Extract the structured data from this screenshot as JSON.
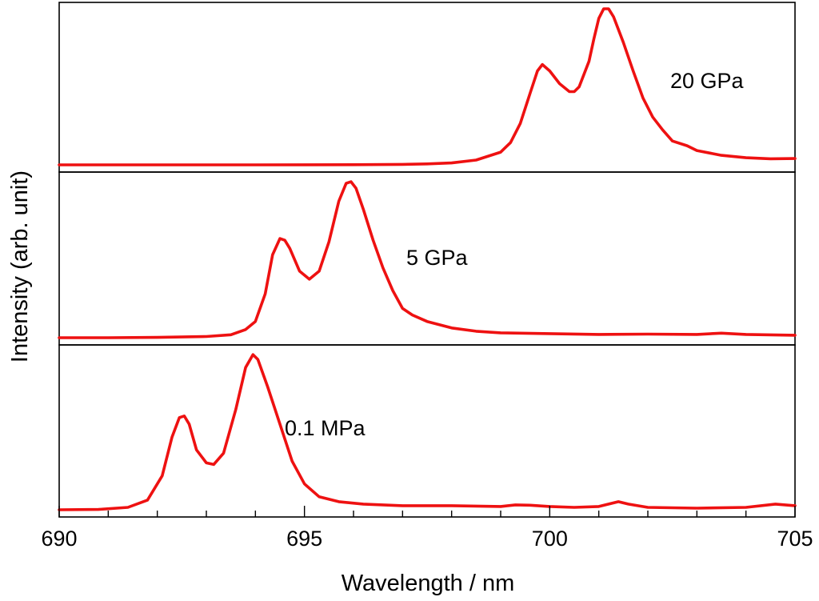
{
  "chart_data": {
    "type": "line",
    "xlabel": "Wavelength / nm",
    "ylabel": "Intensity (arb. unit)",
    "xlim": [
      690,
      705
    ],
    "x_ticks": [
      "690",
      "695",
      "700",
      "705"
    ],
    "x_tick_values": [
      690,
      695,
      700,
      705
    ],
    "x_minor_step": 1,
    "line_color": "#ee1111",
    "panels": [
      {
        "label": "20 GPa",
        "ylim": [
          0,
          1
        ],
        "points": [
          [
            690,
            0.01
          ],
          [
            692,
            0.01
          ],
          [
            694,
            0.01
          ],
          [
            696,
            0.011
          ],
          [
            697,
            0.013
          ],
          [
            697.5,
            0.016
          ],
          [
            698,
            0.022
          ],
          [
            698.5,
            0.04
          ],
          [
            699,
            0.09
          ],
          [
            699.2,
            0.15
          ],
          [
            699.4,
            0.27
          ],
          [
            699.6,
            0.46
          ],
          [
            699.75,
            0.6
          ],
          [
            699.85,
            0.64
          ],
          [
            700,
            0.6
          ],
          [
            700.2,
            0.52
          ],
          [
            700.4,
            0.47
          ],
          [
            700.5,
            0.47
          ],
          [
            700.6,
            0.5
          ],
          [
            700.8,
            0.66
          ],
          [
            700.9,
            0.8
          ],
          [
            701.0,
            0.93
          ],
          [
            701.1,
            0.99
          ],
          [
            701.2,
            0.99
          ],
          [
            701.3,
            0.94
          ],
          [
            701.5,
            0.78
          ],
          [
            701.7,
            0.6
          ],
          [
            701.9,
            0.43
          ],
          [
            702.1,
            0.31
          ],
          [
            702.3,
            0.23
          ],
          [
            702.5,
            0.16
          ],
          [
            702.8,
            0.13
          ],
          [
            703,
            0.1
          ],
          [
            703.5,
            0.07
          ],
          [
            704,
            0.055
          ],
          [
            704.5,
            0.048
          ],
          [
            705,
            0.05
          ]
        ]
      },
      {
        "label": "5 GPa",
        "ylim": [
          0,
          1
        ],
        "points": [
          [
            690,
            0.01
          ],
          [
            691,
            0.01
          ],
          [
            692,
            0.012
          ],
          [
            693,
            0.017
          ],
          [
            693.5,
            0.028
          ],
          [
            693.8,
            0.06
          ],
          [
            694,
            0.11
          ],
          [
            694.2,
            0.28
          ],
          [
            694.35,
            0.52
          ],
          [
            694.5,
            0.62
          ],
          [
            694.6,
            0.61
          ],
          [
            694.7,
            0.56
          ],
          [
            694.9,
            0.42
          ],
          [
            695.1,
            0.37
          ],
          [
            695.3,
            0.42
          ],
          [
            695.5,
            0.6
          ],
          [
            695.7,
            0.85
          ],
          [
            695.85,
            0.96
          ],
          [
            695.95,
            0.97
          ],
          [
            696.05,
            0.93
          ],
          [
            696.2,
            0.8
          ],
          [
            696.4,
            0.61
          ],
          [
            696.6,
            0.44
          ],
          [
            696.8,
            0.3
          ],
          [
            697,
            0.19
          ],
          [
            697.2,
            0.15
          ],
          [
            697.5,
            0.11
          ],
          [
            698,
            0.07
          ],
          [
            698.5,
            0.05
          ],
          [
            699,
            0.04
          ],
          [
            700,
            0.035
          ],
          [
            701,
            0.03
          ],
          [
            702,
            0.032
          ],
          [
            703,
            0.03
          ],
          [
            703.5,
            0.038
          ],
          [
            704,
            0.03
          ],
          [
            705,
            0.025
          ]
        ]
      },
      {
        "label": "0.1 MPa",
        "ylim": [
          0,
          1
        ],
        "points": [
          [
            690,
            0.01
          ],
          [
            690.8,
            0.012
          ],
          [
            691.4,
            0.025
          ],
          [
            691.8,
            0.07
          ],
          [
            692.1,
            0.22
          ],
          [
            692.3,
            0.46
          ],
          [
            692.45,
            0.58
          ],
          [
            692.55,
            0.59
          ],
          [
            692.65,
            0.54
          ],
          [
            692.8,
            0.38
          ],
          [
            693.0,
            0.3
          ],
          [
            693.15,
            0.29
          ],
          [
            693.35,
            0.36
          ],
          [
            693.6,
            0.63
          ],
          [
            693.8,
            0.89
          ],
          [
            693.95,
            0.97
          ],
          [
            694.05,
            0.94
          ],
          [
            694.25,
            0.77
          ],
          [
            694.5,
            0.54
          ],
          [
            694.75,
            0.31
          ],
          [
            695.0,
            0.17
          ],
          [
            695.3,
            0.09
          ],
          [
            695.7,
            0.06
          ],
          [
            696.2,
            0.045
          ],
          [
            697,
            0.035
          ],
          [
            698,
            0.035
          ],
          [
            699,
            0.03
          ],
          [
            699.3,
            0.04
          ],
          [
            699.6,
            0.038
          ],
          [
            700,
            0.03
          ],
          [
            700.5,
            0.025
          ],
          [
            701,
            0.03
          ],
          [
            701.4,
            0.06
          ],
          [
            701.6,
            0.045
          ],
          [
            702,
            0.025
          ],
          [
            703,
            0.02
          ],
          [
            704,
            0.025
          ],
          [
            704.6,
            0.045
          ],
          [
            705,
            0.035
          ]
        ]
      }
    ]
  }
}
